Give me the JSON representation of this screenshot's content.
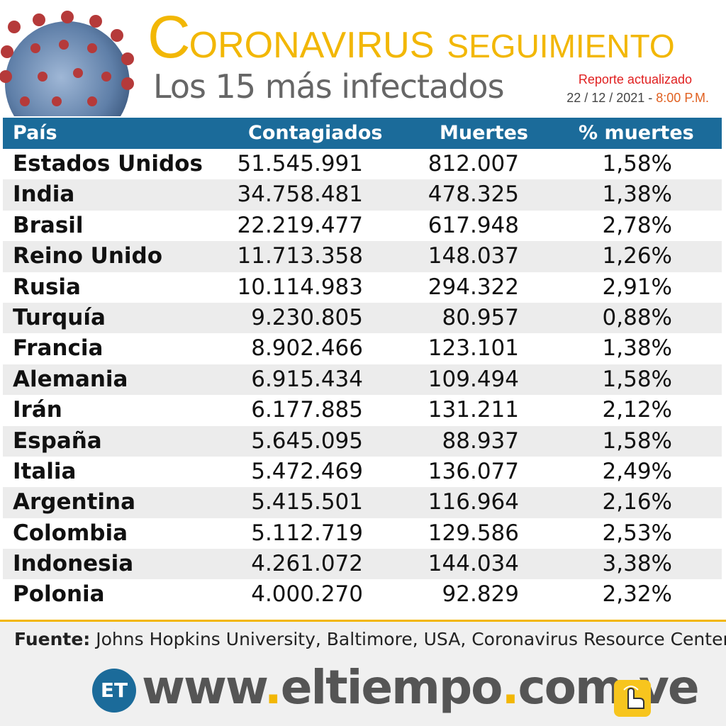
{
  "header": {
    "title_cap": "C",
    "title_rest": "ORONAVIRUS",
    "title_seg": "SEGUIMIENTO",
    "subtitle": "Los 15 más infectados",
    "report_label": "Reporte actualizado",
    "report_date": "22 / 12 / 2021",
    "report_dash": " - ",
    "report_time": "8:00 P.M."
  },
  "table": {
    "headers": [
      "País",
      "Contagiados",
      "Muertes",
      "% muertes"
    ],
    "rows": [
      [
        "Estados Unidos",
        "51.545.991",
        "812.007",
        "1,58%"
      ],
      [
        "India",
        "34.758.481",
        "478.325",
        "1,38%"
      ],
      [
        "Brasil",
        "22.219.477",
        "617.948",
        "2,78%"
      ],
      [
        "Reino Unido",
        "11.713.358",
        "148.037",
        "1,26%"
      ],
      [
        "Rusia",
        "10.114.983",
        "294.322",
        "2,91%"
      ],
      [
        "Turquía",
        "9.230.805",
        "80.957",
        "0,88%"
      ],
      [
        "Francia",
        "8.902.466",
        "123.101",
        "1,38%"
      ],
      [
        "Alemania",
        "6.915.434",
        "109.494",
        "1,58%"
      ],
      [
        "Irán",
        "6.177.885",
        "131.211",
        "2,12%"
      ],
      [
        "España",
        "5.645.095",
        "88.937",
        "1,58%"
      ],
      [
        "Italia",
        "5.472.469",
        "136.077",
        "2,49%"
      ],
      [
        "Argentina",
        "5.415.501",
        "116.964",
        "2,16%"
      ],
      [
        "Colombia",
        "5.112.719",
        "129.586",
        "2,53%"
      ],
      [
        "Indonesia",
        "4.261.072",
        "144.034",
        "3,38%"
      ],
      [
        "Polonia",
        "4.000.270",
        "92.829",
        "2,32%"
      ]
    ]
  },
  "footer": {
    "source_label": "Fuente:",
    "source_text": " Johns Hopkins University, Baltimore, USA, Coronavirus Resource Center",
    "logo_text": "ET",
    "url_parts": [
      "www",
      ".",
      "eltiempo",
      ".",
      "com",
      ".",
      "ve"
    ]
  },
  "icons": {
    "virus": "coronavirus-illustration",
    "hand": "hand-pointer-icon"
  },
  "colors": {
    "accent_yellow": "#f2b705",
    "header_blue": "#1b6b9a",
    "report_red": "#e02020"
  }
}
